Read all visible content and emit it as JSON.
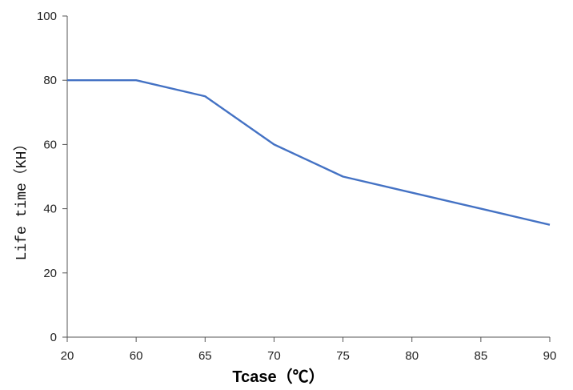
{
  "chart_data": {
    "type": "line",
    "categories": [
      "20",
      "60",
      "65",
      "70",
      "75",
      "80",
      "85",
      "90"
    ],
    "series": [
      {
        "values": [
          80,
          80,
          75,
          60,
          50,
          45,
          40,
          35
        ],
        "color": "#4472c4"
      }
    ],
    "xlabel": "Tcase（℃）",
    "ylabel": "Life time（KH）",
    "ylim": [
      0,
      100
    ],
    "yticks": [
      0,
      20,
      40,
      60,
      80,
      100
    ],
    "grid": false,
    "axis_color": "#555555"
  }
}
